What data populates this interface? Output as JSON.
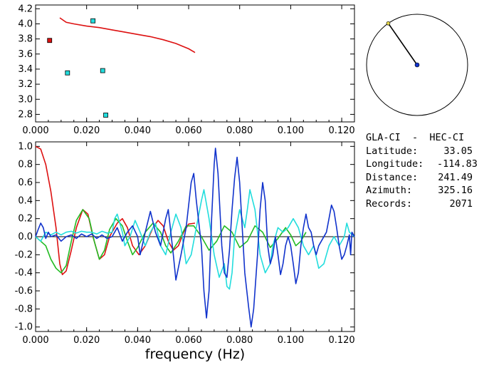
{
  "station": {
    "pair": "GLA-CI  -  HEC-CI",
    "rows": [
      {
        "label": "Latitude:",
        "value": "33.05"
      },
      {
        "label": "Longitude:",
        "value": "-114.83"
      },
      {
        "label": "Distance:",
        "value": "241.49"
      },
      {
        "label": "Azimuth:",
        "value": "325.16"
      },
      {
        "label": "Records:",
        "value": "2071"
      }
    ],
    "azimuth_deg": 325.16
  },
  "xlabel": "frequency (Hz)",
  "chart_data": [
    {
      "type": "scatter",
      "xlim": [
        0.0,
        0.125
      ],
      "ylim": [
        2.7,
        4.25
      ],
      "x_ticks": [
        "0.000",
        "0.020",
        "0.040",
        "0.060",
        "0.080",
        "0.100",
        "0.120"
      ],
      "y_ticks": [
        "2.8",
        "3.0",
        "3.2",
        "3.4",
        "3.6",
        "3.8",
        "4.0",
        "4.2"
      ],
      "colors": {
        "curve": "#dd1111",
        "points": "#22dddd",
        "highlight": "#dd1111"
      },
      "points": [
        {
          "x": 0.0055,
          "y": 3.78,
          "color": "#dd1111"
        },
        {
          "x": 0.0125,
          "y": 3.35,
          "color": "#22dddd"
        },
        {
          "x": 0.0225,
          "y": 4.04,
          "color": "#22dddd"
        },
        {
          "x": 0.0263,
          "y": 3.38,
          "color": "#22dddd"
        },
        {
          "x": 0.0275,
          "y": 2.79,
          "color": "#22dddd"
        }
      ],
      "curve": [
        [
          0.0095,
          4.08
        ],
        [
          0.012,
          4.02
        ],
        [
          0.015,
          4.0
        ],
        [
          0.02,
          3.97
        ],
        [
          0.025,
          3.95
        ],
        [
          0.03,
          3.92
        ],
        [
          0.035,
          3.89
        ],
        [
          0.04,
          3.86
        ],
        [
          0.045,
          3.83
        ],
        [
          0.05,
          3.79
        ],
        [
          0.055,
          3.74
        ],
        [
          0.06,
          3.67
        ],
        [
          0.0625,
          3.62
        ]
      ]
    },
    {
      "type": "line",
      "xlim": [
        0.0,
        0.125
      ],
      "ylim": [
        -1.05,
        1.05
      ],
      "x_ticks": [
        "0.000",
        "0.020",
        "0.040",
        "0.060",
        "0.080",
        "0.100",
        "0.120"
      ],
      "y_ticks": [
        "1.0",
        "0.8",
        "0.6",
        "0.4",
        "0.2",
        "0.0",
        "-0.2",
        "-0.4",
        "-0.6",
        "-0.8",
        "-1.0"
      ],
      "series": [
        {
          "color": "#dd1111",
          "points": [
            [
              0.0,
              1.0
            ],
            [
              0.002,
              0.97
            ],
            [
              0.004,
              0.8
            ],
            [
              0.006,
              0.5
            ],
            [
              0.008,
              0.1
            ],
            [
              0.0095,
              -0.3
            ],
            [
              0.0105,
              -0.42
            ],
            [
              0.012,
              -0.38
            ],
            [
              0.014,
              -0.15
            ],
            [
              0.016,
              0.1
            ],
            [
              0.0185,
              0.3
            ],
            [
              0.0205,
              0.25
            ],
            [
              0.0225,
              0.0
            ],
            [
              0.025,
              -0.25
            ],
            [
              0.027,
              -0.2
            ],
            [
              0.029,
              0.0
            ],
            [
              0.032,
              0.15
            ],
            [
              0.034,
              0.2
            ],
            [
              0.036,
              0.1
            ],
            [
              0.038,
              -0.1
            ],
            [
              0.0405,
              -0.2
            ],
            [
              0.043,
              -0.1
            ],
            [
              0.046,
              0.1
            ],
            [
              0.048,
              0.18
            ],
            [
              0.05,
              0.12
            ],
            [
              0.052,
              -0.05
            ],
            [
              0.054,
              -0.15
            ],
            [
              0.056,
              -0.1
            ],
            [
              0.058,
              0.05
            ],
            [
              0.06,
              0.14
            ],
            [
              0.0625,
              0.15
            ]
          ]
        },
        {
          "color": "#22bb22",
          "points": [
            [
              0.0,
              0.0
            ],
            [
              0.004,
              -0.1
            ],
            [
              0.006,
              -0.25
            ],
            [
              0.008,
              -0.35
            ],
            [
              0.01,
              -0.4
            ],
            [
              0.012,
              -0.32
            ],
            [
              0.014,
              -0.05
            ],
            [
              0.016,
              0.18
            ],
            [
              0.0185,
              0.3
            ],
            [
              0.021,
              0.2
            ],
            [
              0.023,
              -0.05
            ],
            [
              0.025,
              -0.25
            ],
            [
              0.027,
              -0.15
            ],
            [
              0.029,
              0.08
            ],
            [
              0.0315,
              0.2
            ],
            [
              0.034,
              0.12
            ],
            [
              0.036,
              -0.05
            ],
            [
              0.038,
              -0.2
            ],
            [
              0.04,
              -0.12
            ],
            [
              0.043,
              0.05
            ],
            [
              0.046,
              0.15
            ],
            [
              0.049,
              0.05
            ],
            [
              0.051,
              -0.1
            ],
            [
              0.053,
              -0.18
            ],
            [
              0.056,
              -0.05
            ],
            [
              0.059,
              0.12
            ],
            [
              0.062,
              0.12
            ],
            [
              0.065,
              0.0
            ],
            [
              0.068,
              -0.15
            ],
            [
              0.071,
              -0.05
            ],
            [
              0.074,
              0.12
            ],
            [
              0.077,
              0.05
            ],
            [
              0.08,
              -0.12
            ],
            [
              0.083,
              -0.05
            ],
            [
              0.086,
              0.12
            ],
            [
              0.089,
              0.05
            ],
            [
              0.092,
              -0.12
            ],
            [
              0.095,
              -0.02
            ],
            [
              0.098,
              0.1
            ],
            [
              0.1,
              0.02
            ],
            [
              0.102,
              -0.1
            ],
            [
              0.104,
              -0.05
            ],
            [
              0.106,
              0.05
            ]
          ]
        },
        {
          "color": "#22dddd",
          "points": [
            [
              0.0,
              0.0
            ],
            [
              0.002,
              -0.05
            ],
            [
              0.004,
              0.05
            ],
            [
              0.006,
              0.02
            ],
            [
              0.008,
              0.05
            ],
            [
              0.01,
              0.02
            ],
            [
              0.012,
              0.05
            ],
            [
              0.014,
              0.06
            ],
            [
              0.016,
              0.04
            ],
            [
              0.018,
              0.06
            ],
            [
              0.02,
              0.05
            ],
            [
              0.022,
              0.05
            ],
            [
              0.024,
              0.03
            ],
            [
              0.026,
              0.06
            ],
            [
              0.028,
              0.04
            ],
            [
              0.03,
              0.05
            ],
            [
              0.031,
              0.2
            ],
            [
              0.032,
              0.25
            ],
            [
              0.034,
              0.05
            ],
            [
              0.035,
              -0.1
            ],
            [
              0.037,
              0.0
            ],
            [
              0.039,
              0.18
            ],
            [
              0.041,
              0.05
            ],
            [
              0.043,
              -0.1
            ],
            [
              0.045,
              0.05
            ],
            [
              0.047,
              0.15
            ],
            [
              0.049,
              -0.1
            ],
            [
              0.051,
              -0.2
            ],
            [
              0.053,
              0.05
            ],
            [
              0.055,
              0.25
            ],
            [
              0.057,
              0.1
            ],
            [
              0.059,
              -0.3
            ],
            [
              0.061,
              -0.2
            ],
            [
              0.063,
              0.1
            ],
            [
              0.065,
              0.4
            ],
            [
              0.066,
              0.52
            ],
            [
              0.068,
              0.2
            ],
            [
              0.07,
              -0.2
            ],
            [
              0.072,
              -0.45
            ],
            [
              0.074,
              -0.3
            ],
            [
              0.075,
              -0.55
            ],
            [
              0.076,
              -0.58
            ],
            [
              0.077,
              -0.4
            ],
            [
              0.078,
              0.0
            ],
            [
              0.08,
              0.3
            ],
            [
              0.082,
              0.1
            ],
            [
              0.083,
              0.3
            ],
            [
              0.084,
              0.52
            ],
            [
              0.086,
              0.3
            ],
            [
              0.088,
              -0.2
            ],
            [
              0.09,
              -0.4
            ],
            [
              0.092,
              -0.3
            ],
            [
              0.093,
              -0.1
            ],
            [
              0.095,
              0.1
            ],
            [
              0.097,
              0.05
            ],
            [
              0.099,
              0.1
            ],
            [
              0.101,
              0.2
            ],
            [
              0.103,
              0.1
            ],
            [
              0.105,
              -0.1
            ],
            [
              0.107,
              -0.2
            ],
            [
              0.109,
              -0.1
            ],
            [
              0.111,
              -0.35
            ],
            [
              0.113,
              -0.3
            ],
            [
              0.115,
              -0.1
            ],
            [
              0.117,
              0.0
            ],
            [
              0.119,
              -0.1
            ],
            [
              0.121,
              0.0
            ],
            [
              0.122,
              0.15
            ],
            [
              0.123,
              0.05
            ],
            [
              0.125,
              0.0
            ]
          ]
        },
        {
          "color": "#1133cc",
          "points": [
            [
              0.0,
              0.0
            ],
            [
              0.001,
              0.08
            ],
            [
              0.002,
              0.15
            ],
            [
              0.003,
              0.1
            ],
            [
              0.004,
              -0.02
            ],
            [
              0.005,
              0.05
            ],
            [
              0.006,
              0.0
            ],
            [
              0.008,
              0.02
            ],
            [
              0.01,
              -0.05
            ],
            [
              0.012,
              0.0
            ],
            [
              0.014,
              0.02
            ],
            [
              0.016,
              -0.02
            ],
            [
              0.018,
              0.03
            ],
            [
              0.02,
              0.0
            ],
            [
              0.022,
              0.03
            ],
            [
              0.024,
              -0.02
            ],
            [
              0.026,
              0.02
            ],
            [
              0.028,
              -0.02
            ],
            [
              0.03,
              0.0
            ],
            [
              0.032,
              0.1
            ],
            [
              0.034,
              -0.05
            ],
            [
              0.036,
              0.05
            ],
            [
              0.038,
              0.12
            ],
            [
              0.04,
              0.0
            ],
            [
              0.041,
              -0.2
            ],
            [
              0.043,
              0.05
            ],
            [
              0.045,
              0.28
            ],
            [
              0.047,
              0.05
            ],
            [
              0.049,
              -0.1
            ],
            [
              0.051,
              0.2
            ],
            [
              0.052,
              0.3
            ],
            [
              0.054,
              -0.2
            ],
            [
              0.055,
              -0.48
            ],
            [
              0.057,
              -0.2
            ],
            [
              0.059,
              0.1
            ],
            [
              0.061,
              0.6
            ],
            [
              0.062,
              0.7
            ],
            [
              0.063,
              0.4
            ],
            [
              0.065,
              -0.1
            ],
            [
              0.066,
              -0.6
            ],
            [
              0.067,
              -0.9
            ],
            [
              0.068,
              -0.6
            ],
            [
              0.069,
              0.2
            ],
            [
              0.07,
              0.8
            ],
            [
              0.0705,
              0.98
            ],
            [
              0.0715,
              0.7
            ],
            [
              0.073,
              -0.1
            ],
            [
              0.074,
              -0.4
            ],
            [
              0.075,
              -0.45
            ],
            [
              0.076,
              -0.15
            ],
            [
              0.077,
              0.3
            ],
            [
              0.078,
              0.65
            ],
            [
              0.079,
              0.88
            ],
            [
              0.08,
              0.6
            ],
            [
              0.081,
              0.1
            ],
            [
              0.082,
              -0.4
            ],
            [
              0.0835,
              -0.78
            ],
            [
              0.0845,
              -1.0
            ],
            [
              0.0855,
              -0.8
            ],
            [
              0.087,
              -0.2
            ],
            [
              0.088,
              0.3
            ],
            [
              0.089,
              0.6
            ],
            [
              0.09,
              0.4
            ],
            [
              0.091,
              -0.1
            ],
            [
              0.092,
              -0.3
            ],
            [
              0.093,
              -0.2
            ],
            [
              0.094,
              0.0
            ],
            [
              0.095,
              -0.2
            ],
            [
              0.096,
              -0.42
            ],
            [
              0.097,
              -0.3
            ],
            [
              0.098,
              -0.1
            ],
            [
              0.099,
              0.0
            ],
            [
              0.1,
              -0.1
            ],
            [
              0.101,
              -0.3
            ],
            [
              0.102,
              -0.52
            ],
            [
              0.103,
              -0.4
            ],
            [
              0.104,
              -0.1
            ],
            [
              0.105,
              0.1
            ],
            [
              0.106,
              0.25
            ],
            [
              0.107,
              0.1
            ],
            [
              0.108,
              0.05
            ],
            [
              0.109,
              -0.1
            ],
            [
              0.11,
              -0.2
            ],
            [
              0.111,
              -0.1
            ],
            [
              0.112,
              -0.05
            ],
            [
              0.114,
              0.05
            ],
            [
              0.115,
              0.2
            ],
            [
              0.116,
              0.35
            ],
            [
              0.117,
              0.28
            ],
            [
              0.118,
              0.1
            ],
            [
              0.119,
              -0.1
            ],
            [
              0.12,
              -0.25
            ],
            [
              0.121,
              -0.2
            ],
            [
              0.122,
              -0.1
            ],
            [
              0.123,
              0.02
            ],
            [
              0.1235,
              -0.2
            ],
            [
              0.124,
              0.05
            ],
            [
              0.125,
              0.0
            ]
          ]
        }
      ]
    }
  ]
}
